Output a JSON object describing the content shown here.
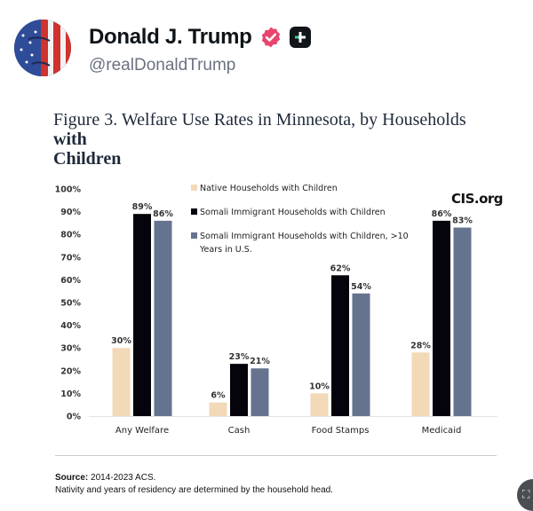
{
  "post": {
    "author_name": "Donald J. Trump",
    "handle": "@realDonaldTrump",
    "verified_icon": "verified-badge-icon",
    "extra_badge_icon": "plus-badge-icon",
    "colors": {
      "verified": "#e8446d",
      "badge_bg": "#111418"
    }
  },
  "figure": {
    "title_regular": "Figure 3. Welfare Use Rates in Minnesota, by Households ",
    "title_bold_1": "with",
    "title_bold_2": "Children",
    "watermark": "CIS.org",
    "source_label": "Source:",
    "source_text": " 2014-2023 ACS.",
    "note": "Nativity and years of residency are determined by the household head."
  },
  "chart_data": {
    "type": "bar",
    "title": "Figure 3. Welfare Use Rates in Minnesota, by Households with Children",
    "xlabel": "",
    "ylabel": "",
    "ylim": [
      0,
      100
    ],
    "yticks": [
      "0%",
      "10%",
      "20%",
      "30%",
      "40%",
      "50%",
      "60%",
      "70%",
      "80%",
      "90%",
      "100%"
    ],
    "grid": false,
    "legend_position": "top-center",
    "categories": [
      "Any Welfare",
      "Cash",
      "Food Stamps",
      "Medicaid"
    ],
    "series": [
      {
        "name": "Native Households with Children",
        "color": "#f2d9b8",
        "values": [
          30,
          6,
          10,
          28
        ],
        "labels": [
          "30%",
          "6%",
          "10%",
          "28%"
        ]
      },
      {
        "name": "Somali Immigrant Households with Children",
        "color": "#05040c",
        "values": [
          89,
          23,
          62,
          86
        ],
        "labels": [
          "89%",
          "23%",
          "62%",
          "86%"
        ]
      },
      {
        "name": "Somali Immigrant Households with Children, >10 Years in U.S.",
        "legend_lines": [
          "Somali Immigrant Households with Children, >10",
          "Years in U.S."
        ],
        "color": "#66738f",
        "values": [
          86,
          21,
          54,
          83
        ],
        "labels": [
          "86%",
          "21%",
          "54%",
          "83%"
        ]
      }
    ]
  },
  "fab": {
    "icon": "chat-icon",
    "glyph": "⛶"
  }
}
